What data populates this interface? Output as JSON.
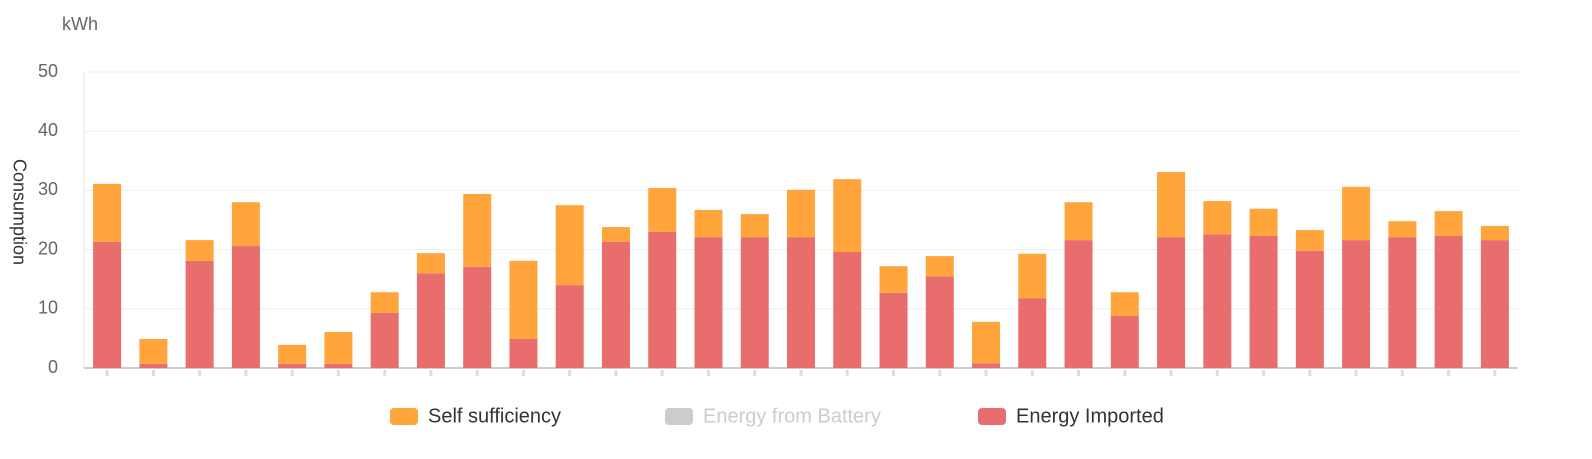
{
  "chart_data": {
    "type": "stacked_bar",
    "unit_label": "kWh",
    "y_label": "Consumption",
    "categories": [
      null,
      null,
      null,
      null,
      null,
      null,
      null,
      null,
      null,
      null,
      null,
      null,
      null,
      null,
      null,
      null,
      null,
      null,
      null,
      null,
      null,
      null,
      null,
      null,
      null,
      null,
      null,
      null,
      null,
      null,
      null
    ],
    "series": [
      {
        "name": "Self sufficiency",
        "color": "#ffa53c",
        "visible": true,
        "values": [
          9.8,
          4.2,
          3.5,
          7.4,
          3.2,
          5.4,
          3.5,
          3.4,
          12.3,
          13.2,
          13.5,
          2.5,
          7.4,
          4.6,
          3.9,
          8.0,
          12.3,
          4.5,
          3.4,
          7.0,
          7.5,
          6.4,
          4.0,
          11.0,
          5.6,
          4.6,
          3.5,
          9.0,
          2.7,
          4.2,
          2.4
        ]
      },
      {
        "name": "Energy from Battery",
        "color": "#cccccc",
        "visible": false,
        "values": [
          null,
          null,
          null,
          null,
          null,
          null,
          null,
          null,
          null,
          null,
          null,
          null,
          null,
          null,
          null,
          null,
          null,
          null,
          null,
          null,
          null,
          null,
          null,
          null,
          null,
          null,
          null,
          null,
          null,
          null,
          null
        ]
      },
      {
        "name": "Energy Imported",
        "color": "#e96d6d",
        "visible": true,
        "values": [
          21.3,
          0.7,
          18.1,
          20.6,
          0.7,
          0.7,
          9.3,
          16.0,
          17.1,
          4.9,
          14.0,
          21.3,
          23.0,
          22.1,
          22.1,
          22.1,
          19.6,
          12.7,
          15.5,
          0.8,
          11.8,
          21.6,
          8.8,
          22.1,
          22.6,
          22.3,
          19.8,
          21.6,
          22.1,
          22.3,
          21.6
        ]
      }
    ],
    "ylim": [
      0,
      50
    ],
    "yticks": [
      0,
      10,
      20,
      30,
      40,
      50
    ],
    "grid": true,
    "legend": "bottom"
  }
}
